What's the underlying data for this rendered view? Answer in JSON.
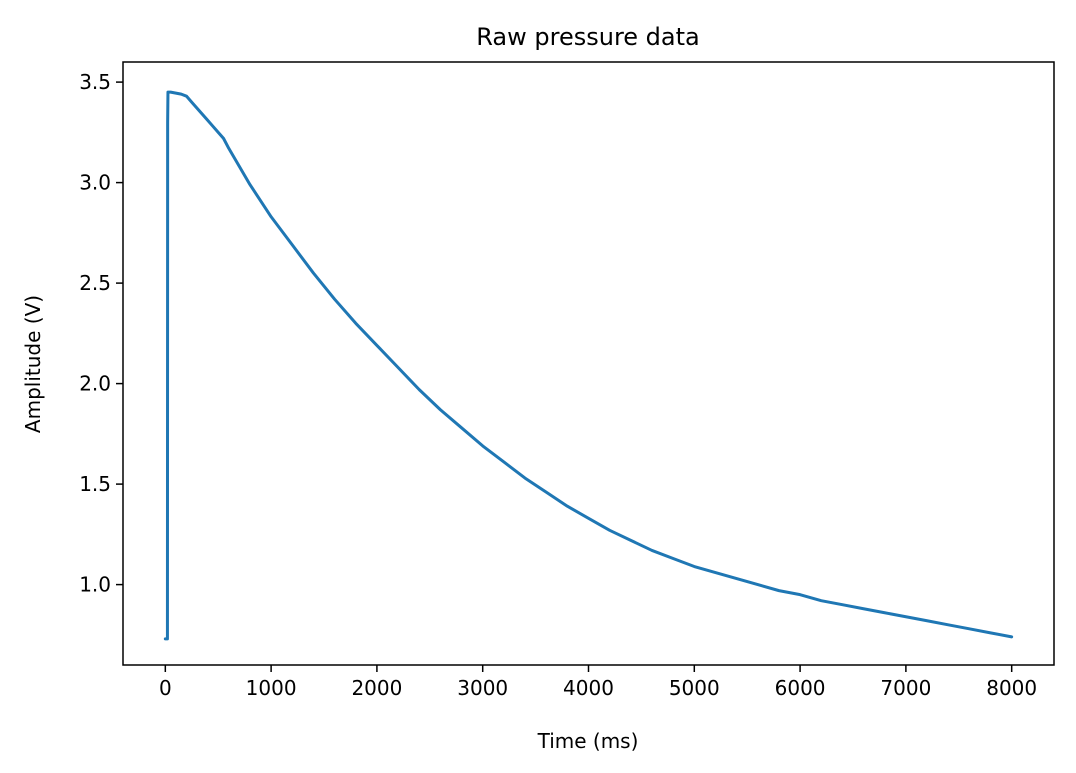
{
  "chart_data": {
    "type": "line",
    "title": "Raw pressure data",
    "xlabel": "Time (ms)",
    "ylabel": "Amplitude (V)",
    "xlim": [
      -400,
      8400
    ],
    "ylim": [
      0.6,
      3.6
    ],
    "xticks": [
      0,
      1000,
      2000,
      3000,
      4000,
      5000,
      6000,
      7000,
      8000
    ],
    "xtick_labels": [
      "0",
      "1000",
      "2000",
      "3000",
      "4000",
      "5000",
      "6000",
      "7000",
      "8000"
    ],
    "yticks": [
      1.0,
      1.5,
      2.0,
      2.5,
      3.0,
      3.5
    ],
    "ytick_labels": [
      "1.0",
      "1.5",
      "2.0",
      "2.5",
      "3.0",
      "3.5"
    ],
    "grid": false,
    "legend": "none",
    "series": [
      {
        "color": "#1f77b4",
        "x": [
          0,
          20,
          22,
          25,
          50,
          100,
          150,
          200,
          250,
          300,
          350,
          400,
          450,
          500,
          550,
          600,
          700,
          800,
          900,
          1000,
          1200,
          1400,
          1600,
          1800,
          2000,
          2200,
          2400,
          2600,
          2800,
          3000,
          3200,
          3400,
          3600,
          3800,
          4000,
          4200,
          4400,
          4600,
          4800,
          5000,
          5200,
          5400,
          5600,
          5800,
          6000,
          6200,
          6400,
          6600,
          6800,
          7000,
          7200,
          7400,
          7600,
          7800,
          8000
        ],
        "y": [
          0.73,
          0.73,
          3.3,
          3.45,
          3.45,
          3.445,
          3.44,
          3.43,
          3.4,
          3.37,
          3.34,
          3.31,
          3.28,
          3.25,
          3.22,
          3.17,
          3.08,
          2.99,
          2.91,
          2.83,
          2.69,
          2.55,
          2.42,
          2.3,
          2.19,
          2.08,
          1.97,
          1.87,
          1.78,
          1.69,
          1.61,
          1.53,
          1.46,
          1.39,
          1.33,
          1.27,
          1.22,
          1.17,
          1.13,
          1.09,
          1.06,
          1.03,
          1.0,
          0.97,
          0.95,
          0.92,
          0.9,
          0.88,
          0.86,
          0.84,
          0.82,
          0.8,
          0.78,
          0.76,
          0.74
        ]
      }
    ]
  }
}
